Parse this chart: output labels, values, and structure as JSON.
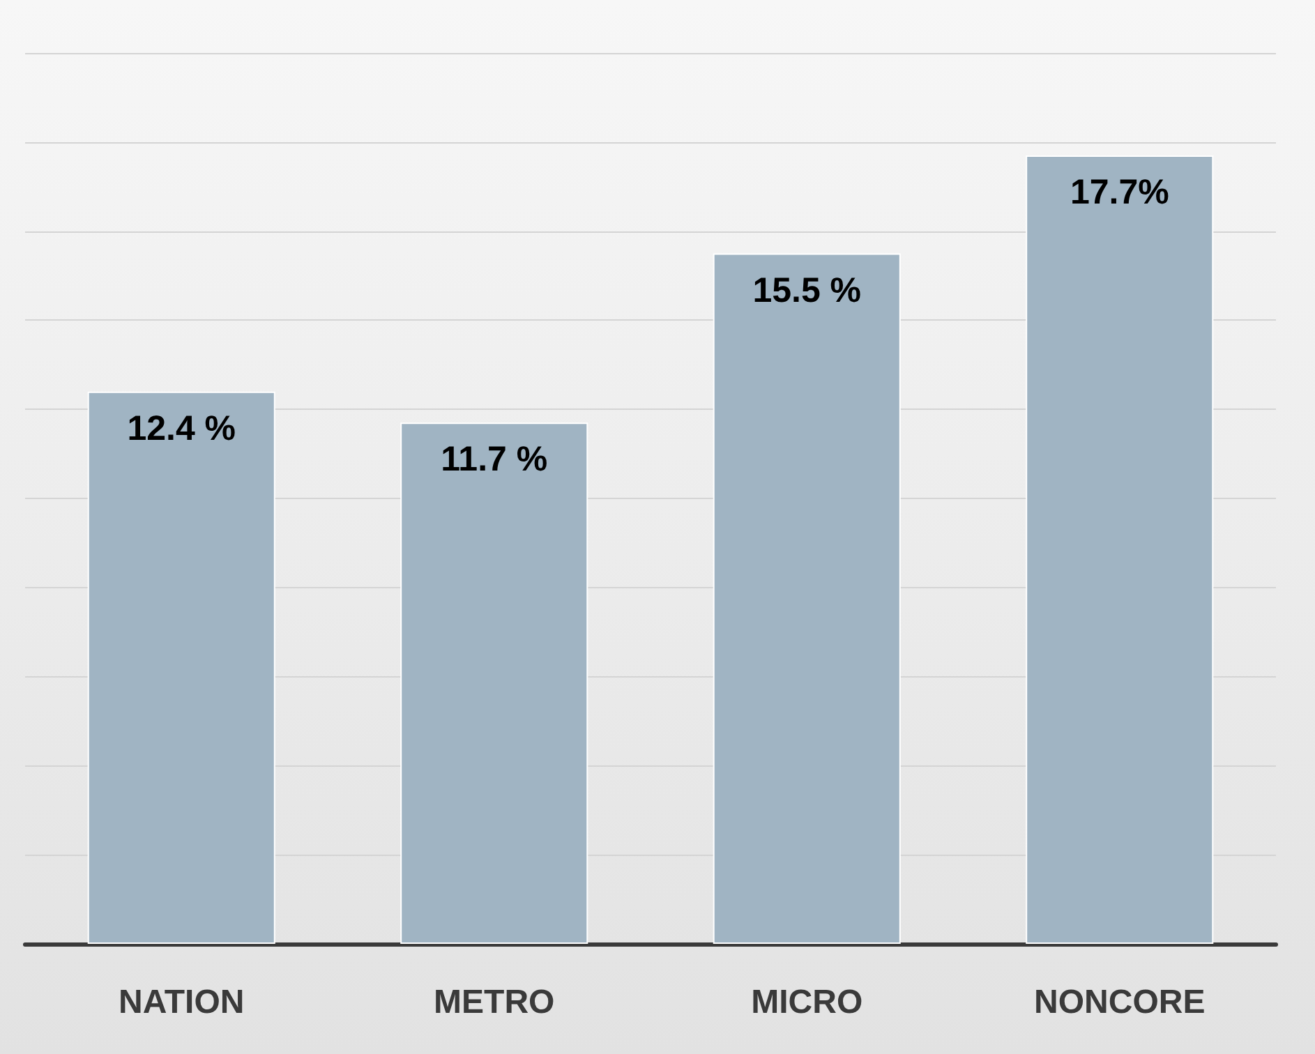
{
  "chart_data": {
    "type": "bar",
    "categories": [
      "NATION",
      "METRO",
      "MICRO",
      "NONCORE"
    ],
    "values": [
      12.4,
      11.7,
      15.5,
      17.7
    ],
    "color": "#a0b4c3",
    "value_labels": [
      "12.4 %",
      "11.7 %",
      "15.5 %",
      "17.7%"
    ],
    "ylim": [
      0,
      20
    ],
    "yticks": [
      {
        "value": 0,
        "label": null
      },
      {
        "value": 2,
        "label": null
      },
      {
        "value": 4,
        "label": null
      },
      {
        "value": 6,
        "label": null
      },
      {
        "value": 8,
        "label": null
      },
      {
        "value": 10,
        "label": null
      },
      {
        "value": 12,
        "label": null
      },
      {
        "value": 14,
        "label": null
      },
      {
        "value": 16,
        "label": null
      },
      {
        "value": 18,
        "label": null
      },
      {
        "value": 20,
        "label": null
      }
    ],
    "grid": "y",
    "tick_labels": "x"
  }
}
